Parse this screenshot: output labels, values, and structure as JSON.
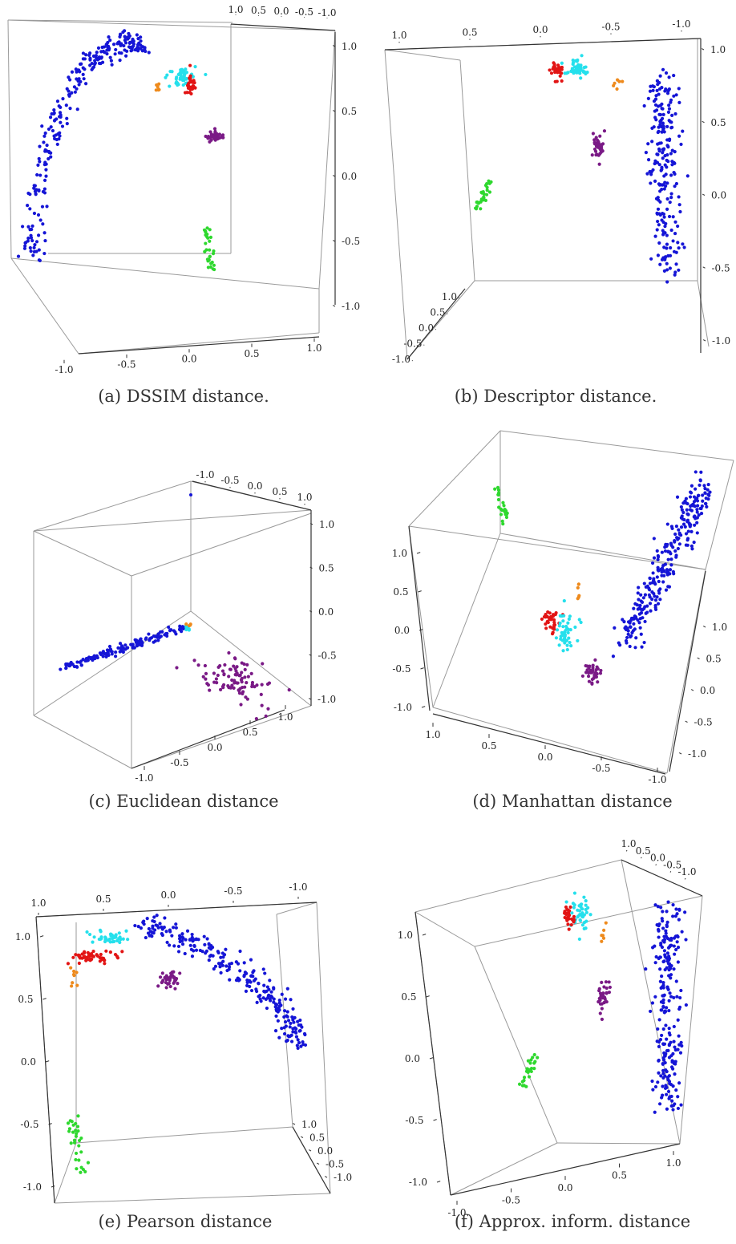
{
  "figure_panels": [
    {
      "caption": "(a) DSSIM distance."
    },
    {
      "caption": "(b) Descriptor distance."
    },
    {
      "caption": "(c) Euclidean distance"
    },
    {
      "caption": "(d) Manhattan distance"
    },
    {
      "caption": "(e) Pearson distance"
    },
    {
      "caption": "(f) Approx. inform. distance"
    }
  ],
  "chart_data": [
    {
      "type": "scatter",
      "caption": "(a) DSSIM distance.",
      "dimensions": 3,
      "axis_range": [
        -1.0,
        1.0
      ],
      "tick_values": [
        "-1.0",
        "-0.5",
        "0.0",
        "0.5",
        "1.0"
      ],
      "series_colors": {
        "blue": "#1515d6",
        "cyan": "#25e0ec",
        "red": "#e21414",
        "orange": "#ee8a1c",
        "purple": "#7a1a86",
        "green": "#2ed82e"
      }
    },
    {
      "type": "scatter",
      "caption": "(b) Descriptor distance.",
      "dimensions": 3,
      "axis_range": [
        -1.0,
        1.0
      ],
      "tick_values": [
        "-1.0",
        "-0.5",
        "0.0",
        "0.5",
        "1.0"
      ],
      "series_colors": {
        "blue": "#1515d6",
        "cyan": "#25e0ec",
        "red": "#e21414",
        "orange": "#ee8a1c",
        "purple": "#7a1a86",
        "green": "#2ed82e"
      }
    },
    {
      "type": "scatter",
      "caption": "(c) Euclidean distance",
      "dimensions": 3,
      "axis_range": [
        -1.0,
        1.0
      ],
      "tick_values": [
        "-1.0",
        "-0.5",
        "0.0",
        "0.5",
        "1.0"
      ],
      "series_colors": {
        "blue": "#1515d6",
        "cyan": "#25e0ec",
        "orange": "#ee8a1c",
        "purple": "#7a1a86"
      }
    },
    {
      "type": "scatter",
      "caption": "(d) Manhattan distance",
      "dimensions": 3,
      "axis_range": [
        -1.0,
        1.0
      ],
      "tick_values": [
        "-1.0",
        "-0.5",
        "0.0",
        "0.5",
        "1.0"
      ],
      "series_colors": {
        "blue": "#1515d6",
        "cyan": "#25e0ec",
        "red": "#e21414",
        "orange": "#ee8a1c",
        "purple": "#7a1a86",
        "green": "#2ed82e"
      }
    },
    {
      "type": "scatter",
      "caption": "(e) Pearson distance",
      "dimensions": 3,
      "axis_range": [
        -1.0,
        1.0
      ],
      "tick_values": [
        "-1.0",
        "-0.5",
        "0.0",
        "0.5",
        "1.0"
      ],
      "series_colors": {
        "blue": "#1515d6",
        "cyan": "#25e0ec",
        "red": "#e21414",
        "orange": "#ee8a1c",
        "purple": "#7a1a86",
        "green": "#2ed82e"
      }
    },
    {
      "type": "scatter",
      "caption": "(f) Approx. inform. distance",
      "dimensions": 3,
      "axis_range": [
        -1.0,
        1.0
      ],
      "tick_values": [
        "-1.0",
        "-0.5",
        "0.0",
        "0.5",
        "1.0"
      ],
      "series_colors": {
        "blue": "#1515d6",
        "cyan": "#25e0ec",
        "red": "#e21414",
        "orange": "#ee8a1c",
        "purple": "#7a1a86",
        "green": "#2ed82e"
      }
    }
  ]
}
